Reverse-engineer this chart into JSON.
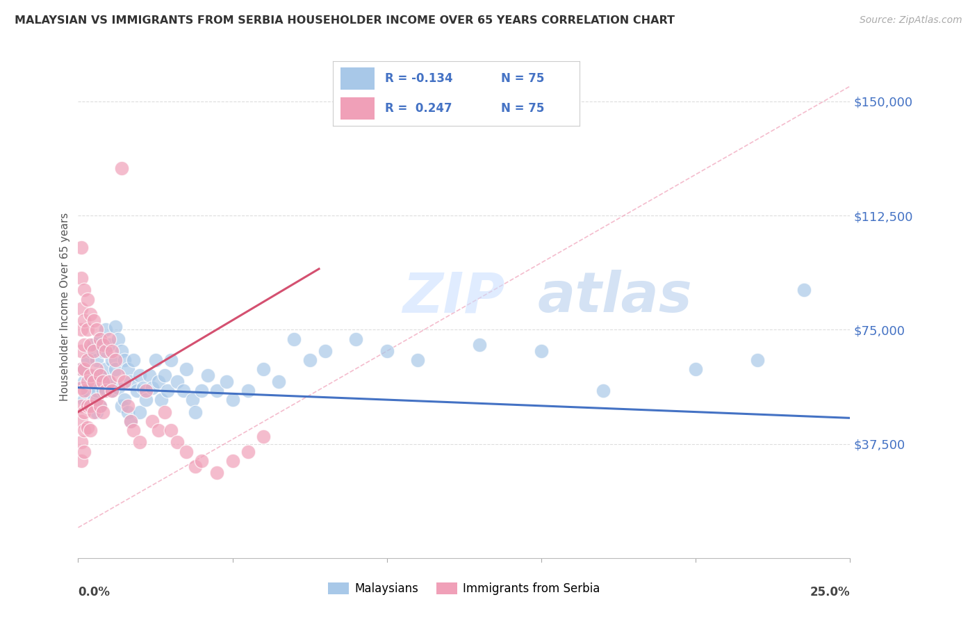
{
  "title": "MALAYSIAN VS IMMIGRANTS FROM SERBIA HOUSEHOLDER INCOME OVER 65 YEARS CORRELATION CHART",
  "source": "Source: ZipAtlas.com",
  "ylabel": "Householder Income Over 65 years",
  "watermark_zip": "ZIP",
  "watermark_atlas": "atlas",
  "legend_label1": "Malaysians",
  "legend_label2": "Immigrants from Serbia",
  "ytick_labels": [
    "$37,500",
    "$75,000",
    "$112,500",
    "$150,000"
  ],
  "ytick_values": [
    37500,
    75000,
    112500,
    150000
  ],
  "ymin": 0,
  "ymax": 165000,
  "xmin": 0.0,
  "xmax": 0.25,
  "blue_color": "#A8C8E8",
  "pink_color": "#F0A0B8",
  "blue_line_color": "#4472C4",
  "pink_line_color": "#D45070",
  "dashed_line_color": "#F0A0B8",
  "grid_color": "#DDDDDD",
  "background_color": "#FFFFFF",
  "blue_scatter": [
    [
      0.001,
      62000
    ],
    [
      0.002,
      58000
    ],
    [
      0.002,
      52000
    ],
    [
      0.003,
      65000
    ],
    [
      0.003,
      55000
    ],
    [
      0.004,
      68000
    ],
    [
      0.004,
      58000
    ],
    [
      0.005,
      70000
    ],
    [
      0.005,
      60000
    ],
    [
      0.005,
      52000
    ],
    [
      0.006,
      65000
    ],
    [
      0.006,
      55000
    ],
    [
      0.006,
      48000
    ],
    [
      0.007,
      72000
    ],
    [
      0.007,
      60000
    ],
    [
      0.007,
      50000
    ],
    [
      0.008,
      68000
    ],
    [
      0.008,
      55000
    ],
    [
      0.009,
      75000
    ],
    [
      0.009,
      62000
    ],
    [
      0.01,
      70000
    ],
    [
      0.01,
      58000
    ],
    [
      0.011,
      65000
    ],
    [
      0.011,
      55000
    ],
    [
      0.012,
      76000
    ],
    [
      0.012,
      62000
    ],
    [
      0.013,
      72000
    ],
    [
      0.013,
      56000
    ],
    [
      0.014,
      68000
    ],
    [
      0.014,
      50000
    ],
    [
      0.015,
      65000
    ],
    [
      0.015,
      52000
    ],
    [
      0.016,
      62000
    ],
    [
      0.016,
      48000
    ],
    [
      0.017,
      58000
    ],
    [
      0.017,
      45000
    ],
    [
      0.018,
      65000
    ],
    [
      0.019,
      55000
    ],
    [
      0.02,
      60000
    ],
    [
      0.02,
      48000
    ],
    [
      0.021,
      56000
    ],
    [
      0.022,
      52000
    ],
    [
      0.023,
      60000
    ],
    [
      0.024,
      56000
    ],
    [
      0.025,
      65000
    ],
    [
      0.026,
      58000
    ],
    [
      0.027,
      52000
    ],
    [
      0.028,
      60000
    ],
    [
      0.029,
      55000
    ],
    [
      0.03,
      65000
    ],
    [
      0.032,
      58000
    ],
    [
      0.034,
      55000
    ],
    [
      0.035,
      62000
    ],
    [
      0.037,
      52000
    ],
    [
      0.038,
      48000
    ],
    [
      0.04,
      55000
    ],
    [
      0.042,
      60000
    ],
    [
      0.045,
      55000
    ],
    [
      0.048,
      58000
    ],
    [
      0.05,
      52000
    ],
    [
      0.055,
      55000
    ],
    [
      0.06,
      62000
    ],
    [
      0.065,
      58000
    ],
    [
      0.07,
      72000
    ],
    [
      0.075,
      65000
    ],
    [
      0.08,
      68000
    ],
    [
      0.09,
      72000
    ],
    [
      0.1,
      68000
    ],
    [
      0.11,
      65000
    ],
    [
      0.13,
      70000
    ],
    [
      0.15,
      68000
    ],
    [
      0.17,
      55000
    ],
    [
      0.2,
      62000
    ],
    [
      0.22,
      65000
    ],
    [
      0.235,
      88000
    ]
  ],
  "pink_scatter": [
    [
      0.001,
      102000
    ],
    [
      0.001,
      92000
    ],
    [
      0.001,
      82000
    ],
    [
      0.001,
      75000
    ],
    [
      0.001,
      68000
    ],
    [
      0.001,
      62000
    ],
    [
      0.001,
      56000
    ],
    [
      0.001,
      50000
    ],
    [
      0.001,
      45000
    ],
    [
      0.001,
      38000
    ],
    [
      0.001,
      32000
    ],
    [
      0.002,
      88000
    ],
    [
      0.002,
      78000
    ],
    [
      0.002,
      70000
    ],
    [
      0.002,
      62000
    ],
    [
      0.002,
      55000
    ],
    [
      0.002,
      48000
    ],
    [
      0.002,
      42000
    ],
    [
      0.002,
      35000
    ],
    [
      0.003,
      85000
    ],
    [
      0.003,
      75000
    ],
    [
      0.003,
      65000
    ],
    [
      0.003,
      58000
    ],
    [
      0.003,
      50000
    ],
    [
      0.003,
      43000
    ],
    [
      0.004,
      80000
    ],
    [
      0.004,
      70000
    ],
    [
      0.004,
      60000
    ],
    [
      0.004,
      50000
    ],
    [
      0.004,
      42000
    ],
    [
      0.005,
      78000
    ],
    [
      0.005,
      68000
    ],
    [
      0.005,
      58000
    ],
    [
      0.005,
      48000
    ],
    [
      0.006,
      75000
    ],
    [
      0.006,
      62000
    ],
    [
      0.006,
      52000
    ],
    [
      0.007,
      72000
    ],
    [
      0.007,
      60000
    ],
    [
      0.007,
      50000
    ],
    [
      0.008,
      70000
    ],
    [
      0.008,
      58000
    ],
    [
      0.008,
      48000
    ],
    [
      0.009,
      68000
    ],
    [
      0.009,
      55000
    ],
    [
      0.01,
      72000
    ],
    [
      0.01,
      58000
    ],
    [
      0.011,
      68000
    ],
    [
      0.011,
      55000
    ],
    [
      0.012,
      65000
    ],
    [
      0.013,
      60000
    ],
    [
      0.014,
      128000
    ],
    [
      0.015,
      58000
    ],
    [
      0.016,
      50000
    ],
    [
      0.017,
      45000
    ],
    [
      0.018,
      42000
    ],
    [
      0.02,
      38000
    ],
    [
      0.022,
      55000
    ],
    [
      0.024,
      45000
    ],
    [
      0.026,
      42000
    ],
    [
      0.028,
      48000
    ],
    [
      0.03,
      42000
    ],
    [
      0.032,
      38000
    ],
    [
      0.035,
      35000
    ],
    [
      0.038,
      30000
    ],
    [
      0.04,
      32000
    ],
    [
      0.045,
      28000
    ],
    [
      0.05,
      32000
    ],
    [
      0.055,
      35000
    ],
    [
      0.06,
      40000
    ]
  ],
  "blue_line": [
    [
      0.0,
      56000
    ],
    [
      0.25,
      46000
    ]
  ],
  "pink_line": [
    [
      0.0,
      48000
    ],
    [
      0.078,
      95000
    ]
  ],
  "dashed_line": [
    [
      0.0,
      10000
    ],
    [
      0.25,
      155000
    ]
  ]
}
